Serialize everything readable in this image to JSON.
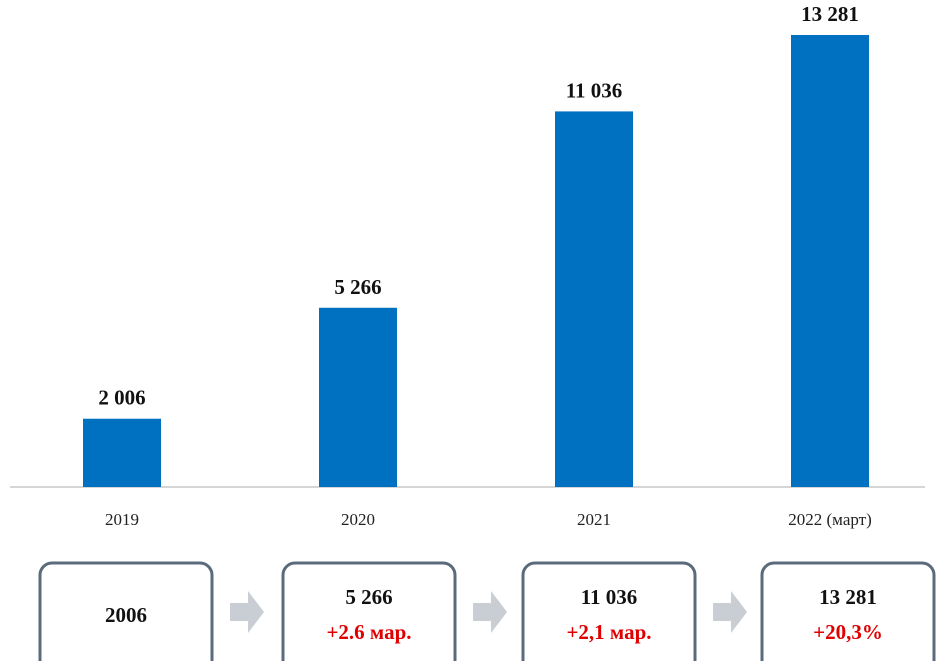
{
  "chart_data": {
    "type": "bar",
    "categories": [
      "2019",
      "2020",
      "2021",
      "2022 (март)"
    ],
    "values": [
      2006,
      5266,
      11036,
      13281
    ],
    "value_labels": [
      "2 006",
      "5 266",
      "11 036",
      "13 281"
    ],
    "color": "#0070c0"
  },
  "summary_boxes": [
    {
      "lines": [
        "2006"
      ]
    },
    {
      "lines": [
        "5 266",
        "+2.6 мар."
      ]
    },
    {
      "lines": [
        "11 036",
        "+2,1 мар."
      ]
    },
    {
      "lines": [
        "13 281",
        "+20,3%"
      ]
    }
  ]
}
